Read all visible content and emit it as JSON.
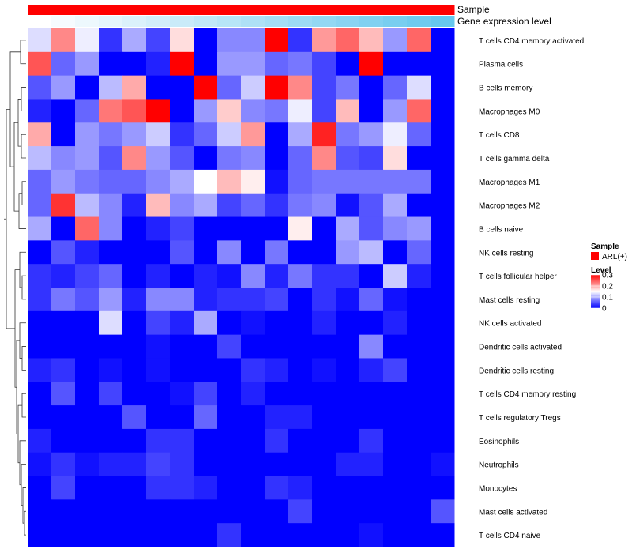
{
  "chart_data": {
    "type": "heatmap",
    "title": "",
    "annotation_rows": [
      {
        "name": "Sample",
        "colors": [
          "#ff0000",
          "#ff0000",
          "#ff0000",
          "#ff0000",
          "#ff0000",
          "#ff0000",
          "#ff0000",
          "#ff0000",
          "#ff0000",
          "#ff0000",
          "#ff0000",
          "#ff0000",
          "#ff0000",
          "#ff0000",
          "#ff0000",
          "#ff0000",
          "#ff0000",
          "#ff0000"
        ]
      },
      {
        "name": "Gene expression level",
        "colors": [
          "#ffffff",
          "#f6fbfe",
          "#edf8fd",
          "#e4f5fc",
          "#dbf1fb",
          "#d2eefa",
          "#c9ebf9",
          "#c0e8f8",
          "#b7e5f7",
          "#aee1f6",
          "#a5def5",
          "#9cdbf4",
          "#93d8f3",
          "#8ad4f2",
          "#81d1f1",
          "#78cef0",
          "#6fcbef",
          "#66c8ee"
        ]
      }
    ],
    "rows": [
      "T cells CD4 memory activated",
      "Plasma cells",
      "B cells memory",
      "Macrophages M0",
      "T cells CD8",
      "T cells gamma delta",
      "Macrophages M1",
      "Macrophages M2",
      "B cells naive",
      "NK cells resting",
      "T cells follicular helper",
      "Mast cells resting",
      "NK cells activated",
      "Dendritic cells activated",
      "Dendritic cells resting",
      "T cells CD4 memory resting",
      "T cells regulatory  Tregs",
      "Eosinophils",
      "Neutrophils",
      "Monocytes",
      "Mast cells activated",
      "T cells CD4 naive"
    ],
    "n_columns": 18,
    "values": [
      [
        0.13,
        0.22,
        0.14,
        0.03,
        0.1,
        0.04,
        0.17,
        0.0,
        0.08,
        0.08,
        0.3,
        0.03,
        0.21,
        0.24,
        0.19,
        0.09,
        0.24,
        0.0
      ],
      [
        0.25,
        0.06,
        0.09,
        0.0,
        0.0,
        0.02,
        0.3,
        0.0,
        0.09,
        0.09,
        0.06,
        0.07,
        0.04,
        0.0,
        0.3,
        0.0,
        0.0,
        0.0
      ],
      [
        0.05,
        0.09,
        0.0,
        0.11,
        0.2,
        0.0,
        0.0,
        0.3,
        0.06,
        0.12,
        0.3,
        0.22,
        0.04,
        0.07,
        0.0,
        0.06,
        0.13,
        0.0
      ],
      [
        0.02,
        0.0,
        0.06,
        0.23,
        0.25,
        0.3,
        0.0,
        0.09,
        0.18,
        0.08,
        0.07,
        0.14,
        0.04,
        0.19,
        0.0,
        0.09,
        0.24,
        0.0
      ],
      [
        0.2,
        0.0,
        0.09,
        0.07,
        0.09,
        0.12,
        0.03,
        0.06,
        0.12,
        0.21,
        0.0,
        0.1,
        0.28,
        0.07,
        0.09,
        0.14,
        0.06,
        0.0
      ],
      [
        0.11,
        0.08,
        0.09,
        0.05,
        0.22,
        0.09,
        0.05,
        0.0,
        0.07,
        0.08,
        0.0,
        0.06,
        0.22,
        0.05,
        0.04,
        0.17,
        0.0,
        0.0
      ],
      [
        0.06,
        0.09,
        0.07,
        0.06,
        0.06,
        0.08,
        0.1,
        0.15,
        0.19,
        0.16,
        0.01,
        0.06,
        0.07,
        0.07,
        0.07,
        0.07,
        0.07,
        0.0
      ],
      [
        0.06,
        0.27,
        0.11,
        0.08,
        0.02,
        0.19,
        0.08,
        0.1,
        0.04,
        0.06,
        0.03,
        0.07,
        0.08,
        0.01,
        0.05,
        0.1,
        0.0,
        0.0
      ],
      [
        0.1,
        0.0,
        0.24,
        0.08,
        0.0,
        0.02,
        0.04,
        0.0,
        0.0,
        0.0,
        0.0,
        0.16,
        0.0,
        0.1,
        0.05,
        0.08,
        0.09,
        0.0
      ],
      [
        0.0,
        0.05,
        0.02,
        0.0,
        0.0,
        0.0,
        0.05,
        0.0,
        0.08,
        0.0,
        0.07,
        0.0,
        0.0,
        0.09,
        0.11,
        0.0,
        0.06,
        0.0
      ],
      [
        0.03,
        0.02,
        0.04,
        0.06,
        0.0,
        0.02,
        0.0,
        0.02,
        0.01,
        0.08,
        0.02,
        0.07,
        0.03,
        0.03,
        0.0,
        0.12,
        0.02,
        0.0
      ],
      [
        0.03,
        0.07,
        0.05,
        0.09,
        0.02,
        0.08,
        0.08,
        0.02,
        0.03,
        0.03,
        0.04,
        0.0,
        0.03,
        0.01,
        0.06,
        0.01,
        0.0,
        0.0
      ],
      [
        0.0,
        0.0,
        0.0,
        0.13,
        0.0,
        0.04,
        0.02,
        0.1,
        0.0,
        0.01,
        0.0,
        0.0,
        0.02,
        0.0,
        0.0,
        0.02,
        0.0,
        0.0
      ],
      [
        0.0,
        0.0,
        0.0,
        0.0,
        0.0,
        0.01,
        0.0,
        0.0,
        0.04,
        0.0,
        0.0,
        0.0,
        0.0,
        0.0,
        0.08,
        0.0,
        0.0,
        0.0
      ],
      [
        0.02,
        0.03,
        0.0,
        0.01,
        0.0,
        0.01,
        0.0,
        0.0,
        0.0,
        0.03,
        0.02,
        0.0,
        0.01,
        0.0,
        0.02,
        0.04,
        0.0,
        0.0
      ],
      [
        0.0,
        0.05,
        0.0,
        0.04,
        0.0,
        0.0,
        0.01,
        0.04,
        0.0,
        0.02,
        0.0,
        0.0,
        0.0,
        0.0,
        0.0,
        0.0,
        0.0,
        0.0
      ],
      [
        0.0,
        0.0,
        0.0,
        0.0,
        0.05,
        0.0,
        0.0,
        0.06,
        0.0,
        0.0,
        0.02,
        0.02,
        0.0,
        0.0,
        0.0,
        0.0,
        0.0,
        0.0
      ],
      [
        0.02,
        0.0,
        0.0,
        0.0,
        0.0,
        0.03,
        0.03,
        0.0,
        0.0,
        0.0,
        0.03,
        0.0,
        0.0,
        0.0,
        0.03,
        0.0,
        0.0,
        0.0
      ],
      [
        0.01,
        0.03,
        0.01,
        0.02,
        0.02,
        0.04,
        0.03,
        0.0,
        0.0,
        0.0,
        0.0,
        0.0,
        0.0,
        0.02,
        0.02,
        0.0,
        0.0,
        0.01
      ],
      [
        0.0,
        0.04,
        0.0,
        0.0,
        0.0,
        0.03,
        0.03,
        0.02,
        0.0,
        0.0,
        0.03,
        0.02,
        0.0,
        0.0,
        0.0,
        0.0,
        0.0,
        0.0
      ],
      [
        0.0,
        0.0,
        0.0,
        0.0,
        0.0,
        0.0,
        0.0,
        0.0,
        0.0,
        0.0,
        0.0,
        0.04,
        0.0,
        0.0,
        0.0,
        0.0,
        0.0,
        0.05
      ],
      [
        0.0,
        0.0,
        0.0,
        0.0,
        0.0,
        0.0,
        0.0,
        0.0,
        0.03,
        0.0,
        0.0,
        0.0,
        0.0,
        0.0,
        0.01,
        0.0,
        0.0,
        0.0
      ]
    ],
    "color_scale": {
      "min": 0,
      "mid": 0.15,
      "max": 0.3,
      "low_color": "#0000ff",
      "mid_color": "#ffffff",
      "high_color": "#ff0000"
    },
    "legend": {
      "sample_title": "Sample",
      "sample_entry": "ARL(+)",
      "sample_color": "#ff0000",
      "level_title": "Level",
      "ticks": [
        "0.3",
        "0.2",
        "0.1",
        "0"
      ],
      "tick_values": [
        0.3,
        0.2,
        0.1,
        0
      ]
    },
    "row_dendrogram": true,
    "column_dendrogram": false
  }
}
